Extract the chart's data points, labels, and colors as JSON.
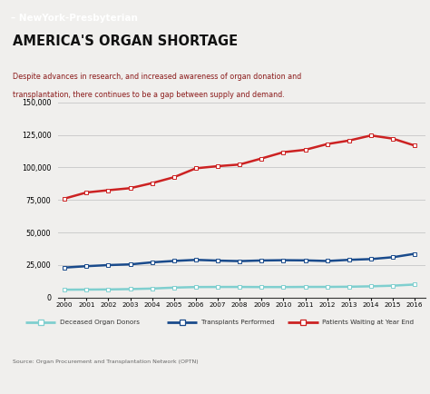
{
  "years": [
    2000,
    2001,
    2002,
    2003,
    2004,
    2005,
    2006,
    2007,
    2008,
    2009,
    2010,
    2011,
    2012,
    2013,
    2014,
    2015,
    2016
  ],
  "deceased_donors": [
    5985,
    6082,
    6190,
    6457,
    6873,
    7593,
    8022,
    8085,
    8108,
    8021,
    8015,
    8128,
    8143,
    8268,
    8589,
    9082,
    9971
  ],
  "transplants": [
    23001,
    24076,
    24902,
    25468,
    27032,
    28109,
    28930,
    28357,
    27959,
    28463,
    28664,
    28535,
    28052,
    28953,
    29532,
    30973,
    33609
  ],
  "patients_waiting": [
    76089,
    80758,
    82503,
    84072,
    87960,
    92526,
    99353,
    100997,
    102262,
    106912,
    111749,
    113586,
    117993,
    120689,
    124614,
    122166,
    116800
  ],
  "deceased_color": "#7fcfcf",
  "transplants_color": "#1a4b8c",
  "waiting_color": "#cc2222",
  "bg_color": "#f0efed",
  "header_bg": "#e8432a",
  "title": "AMERICA'S ORGAN SHORTAGE",
  "subtitle_line1": "Despite advances in research, and increased awareness of organ donation and",
  "subtitle_line2": "transplantation, there continues to be a gap between supply and demand.",
  "subtitle_color": "#8b1a1a",
  "source": "Source: Organ Procurement and Transplantation Network (OPTN)",
  "ylim": [
    0,
    150000
  ],
  "yticks": [
    0,
    25000,
    50000,
    75000,
    100000,
    125000,
    150000
  ],
  "legend_labels": [
    "Deceased Organ Donors",
    "Transplants Performed",
    "Patients Waiting at Year End"
  ],
  "header_text": "– NewYork-Presbyterian"
}
